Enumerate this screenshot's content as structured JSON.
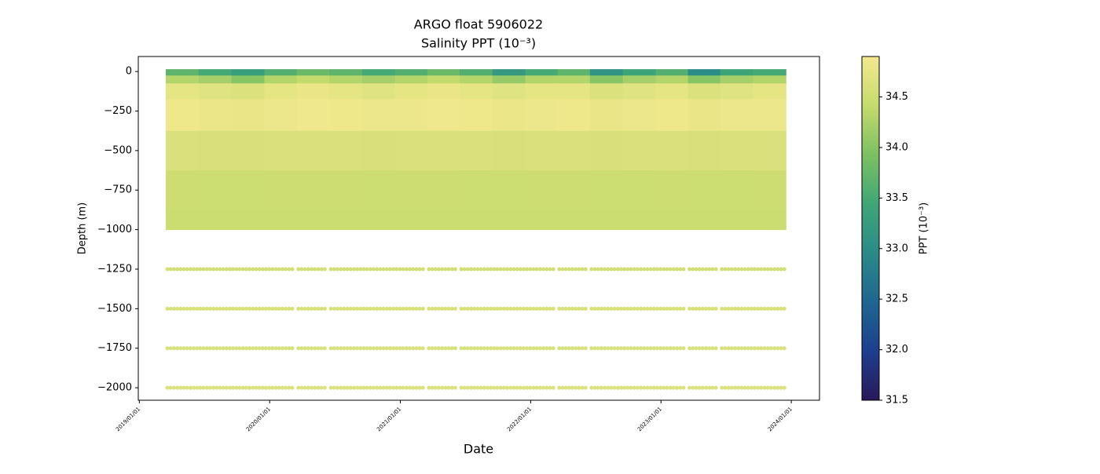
{
  "chart_data": {
    "type": "profile-scatter",
    "title": "ARGO float 5906022",
    "subtitle": "Salinity PPT (10⁻³)",
    "x_label": "Date",
    "y_label": "Depth (m)",
    "colorbar_label": "PPT (10⁻³)",
    "x": [
      "2019/05/01",
      "2019/08/01",
      "2019/11/01",
      "2020/02/01",
      "2020/05/01",
      "2020/08/01",
      "2020/11/01",
      "2021/02/01",
      "2021/05/01",
      "2021/08/01",
      "2021/11/01",
      "2022/02/01",
      "2022/05/01",
      "2022/08/01",
      "2022/11/01",
      "2023/02/01",
      "2023/05/01",
      "2023/08/01",
      "2023/11/01"
    ],
    "depths": [
      0,
      -50,
      -100,
      -250,
      -500,
      -750,
      -1000,
      -1250,
      -1500,
      -1750,
      -2000
    ],
    "salinity": [
      [
        33.7,
        33.5,
        33.3,
        33.6,
        33.8,
        33.7,
        33.5,
        33.6,
        33.8,
        33.6,
        33.2,
        33.5,
        33.7,
        33.1,
        33.4,
        33.6,
        33.0,
        33.4,
        33.5
      ],
      [
        34.3,
        34.2,
        34.0,
        34.3,
        34.4,
        34.3,
        34.2,
        34.3,
        34.4,
        34.3,
        34.1,
        34.3,
        34.3,
        34.0,
        34.2,
        34.3,
        34.0,
        34.2,
        34.3
      ],
      [
        34.75,
        34.7,
        34.65,
        34.75,
        34.8,
        34.75,
        34.7,
        34.75,
        34.8,
        34.75,
        34.7,
        34.75,
        34.75,
        34.65,
        34.7,
        34.75,
        34.65,
        34.7,
        34.75
      ],
      [
        34.85,
        34.82,
        34.8,
        34.84,
        34.86,
        34.85,
        34.83,
        34.84,
        34.86,
        34.85,
        34.82,
        34.84,
        34.85,
        34.8,
        34.83,
        34.85,
        34.8,
        34.83,
        34.84
      ],
      [
        34.62,
        34.6,
        34.6,
        34.62,
        34.63,
        34.62,
        34.6,
        34.62,
        34.62,
        34.61,
        34.6,
        34.61,
        34.62,
        34.6,
        34.61,
        34.62,
        34.6,
        34.61,
        34.62
      ],
      [
        34.5,
        34.49,
        34.49,
        34.5,
        34.5,
        34.5,
        34.49,
        34.5,
        34.5,
        34.49,
        34.49,
        34.5,
        34.5,
        34.49,
        34.49,
        34.5,
        34.49,
        34.49,
        34.5
      ],
      [
        34.48,
        34.48,
        34.48,
        34.48,
        34.48,
        34.48,
        34.48,
        34.48,
        34.48,
        34.48,
        34.48,
        34.48,
        34.48,
        34.48,
        34.48,
        34.48,
        34.48,
        34.48,
        34.48
      ],
      [
        34.55,
        34.55,
        34.55,
        34.55,
        34.55,
        34.55,
        34.55,
        34.55,
        34.55,
        34.55,
        34.55,
        34.55,
        34.55,
        34.55,
        34.55,
        34.55,
        34.55,
        34.55,
        34.55
      ],
      [
        34.6,
        34.6,
        34.6,
        34.6,
        34.6,
        34.6,
        34.6,
        34.6,
        34.6,
        34.6,
        34.6,
        34.6,
        34.6,
        34.6,
        34.6,
        34.6,
        34.6,
        34.6,
        34.6
      ],
      [
        34.63,
        34.63,
        34.63,
        34.63,
        34.63,
        34.63,
        34.63,
        34.63,
        34.63,
        34.63,
        34.63,
        34.63,
        34.63,
        34.63,
        34.63,
        34.63,
        34.63,
        34.63,
        34.63
      ],
      [
        34.65,
        34.65,
        34.65,
        34.65,
        34.65,
        34.65,
        34.65,
        34.65,
        34.65,
        34.65,
        34.65,
        34.65,
        34.65,
        34.65,
        34.65,
        34.65,
        34.65,
        34.65,
        34.65
      ]
    ],
    "xlim": [
      "2018/12/29",
      "2024/03/20"
    ],
    "xticks": [
      "2019/01/01",
      "2020/01/01",
      "2021/01/01",
      "2022/01/01",
      "2023/01/01",
      "2024/01/01"
    ],
    "ylim": [
      -2079,
      95
    ],
    "yticks": [
      0,
      {
        "value": -250,
        "label": "−250"
      },
      {
        "value": -500,
        "label": "−500"
      },
      {
        "value": -750,
        "label": "−750"
      },
      {
        "value": -1000,
        "label": "−1000"
      },
      {
        "value": -1250,
        "label": "−1250"
      },
      {
        "value": -1500,
        "label": "−1500"
      },
      {
        "value": -1750,
        "label": "−1750"
      },
      {
        "value": -2000,
        "label": "−2000"
      }
    ],
    "clim": [
      31.5,
      34.9
    ],
    "cticks": [
      31.5,
      32.0,
      32.5,
      33.0,
      33.5,
      34.0,
      34.5
    ],
    "colormap": [
      "#29185a",
      "#1d3f8f",
      "#1f6690",
      "#2a8a87",
      "#3fa677",
      "#7cc062",
      "#c5db6c",
      "#f3e98f"
    ]
  }
}
